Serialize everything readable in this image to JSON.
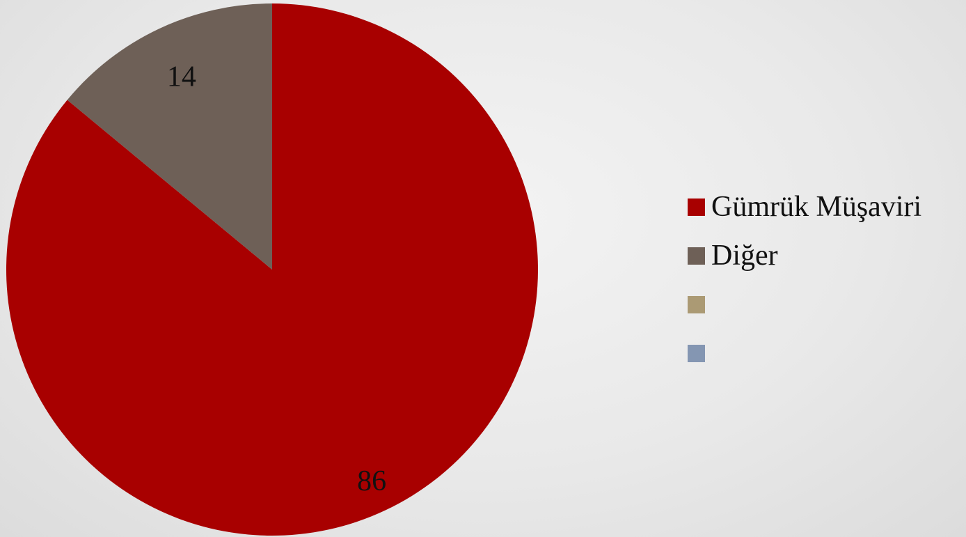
{
  "chart_data": {
    "type": "pie",
    "title": "",
    "start_angle_deg": 0,
    "direction": "clockwise",
    "slices": [
      {
        "label": "Gümrük Müşaviri",
        "value": 86,
        "display": "86",
        "color": "#a80000"
      },
      {
        "label": "Diğer",
        "value": 14,
        "display": "14",
        "color": "#6e6057"
      }
    ],
    "legend": {
      "placement": "right",
      "entries": [
        {
          "label": "Gümrük Müşaviri",
          "color": "#a80000"
        },
        {
          "label": "Diğer",
          "color": "#6e6057"
        },
        {
          "label": "",
          "color": "#ab9a74"
        },
        {
          "label": "",
          "color": "#8496b2"
        }
      ]
    }
  }
}
